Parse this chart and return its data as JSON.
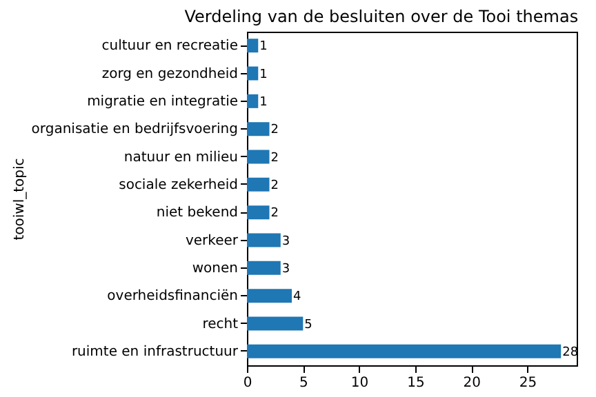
{
  "chart_data": {
    "type": "bar",
    "orientation": "horizontal",
    "title": "Verdeling van de besluiten over de Tooi themas",
    "ylabel": "tooiwl_topic",
    "categories": [
      "cultuur en recreatie",
      "zorg en gezondheid",
      "migratie en integratie",
      "organisatie en bedrijfsvoering",
      "natuur en milieu",
      "sociale zekerheid",
      "niet bekend",
      "verkeer",
      "wonen",
      "overheidsfinanciën",
      "recht",
      "ruimte en infrastructuur"
    ],
    "values": [
      1,
      1,
      1,
      2,
      2,
      2,
      2,
      3,
      3,
      4,
      5,
      28
    ],
    "color": "#1f77b4",
    "xlim": [
      0,
      29.4
    ],
    "xticks": [
      0,
      5,
      10,
      15,
      20,
      25
    ],
    "data_labels": true
  }
}
